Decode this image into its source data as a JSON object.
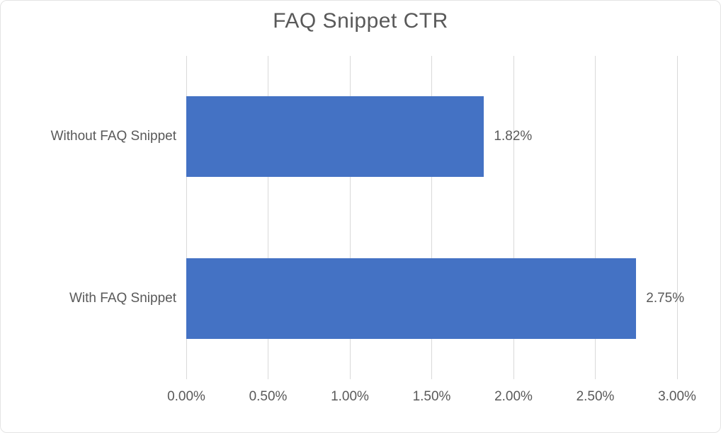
{
  "chart": {
    "title": "FAQ Snippet CTR"
  },
  "chart_data": {
    "type": "bar",
    "orientation": "horizontal",
    "title": "FAQ Snippet CTR",
    "xlabel": "",
    "ylabel": "",
    "categories": [
      "Without FAQ Snippet",
      "With FAQ Snippet"
    ],
    "values": [
      1.82,
      2.75
    ],
    "value_labels": [
      "1.82%",
      "2.75%"
    ],
    "xlim": [
      0,
      3.0
    ],
    "x_ticks": [
      0,
      0.5,
      1.0,
      1.5,
      2.0,
      2.5,
      3.0
    ],
    "x_tick_labels": [
      "0.00%",
      "0.50%",
      "1.00%",
      "1.50%",
      "2.00%",
      "2.50%",
      "3.00%"
    ],
    "grid": "vertical-on",
    "legend": "none",
    "colors": {
      "bar": "#4472C4",
      "gridline": "#D9D9D9",
      "title_text": "#595959",
      "axis_text": "#595959",
      "data_label_text": "#595959",
      "chart_border": "#E4E4E4",
      "background": "#FFFFFF"
    }
  }
}
